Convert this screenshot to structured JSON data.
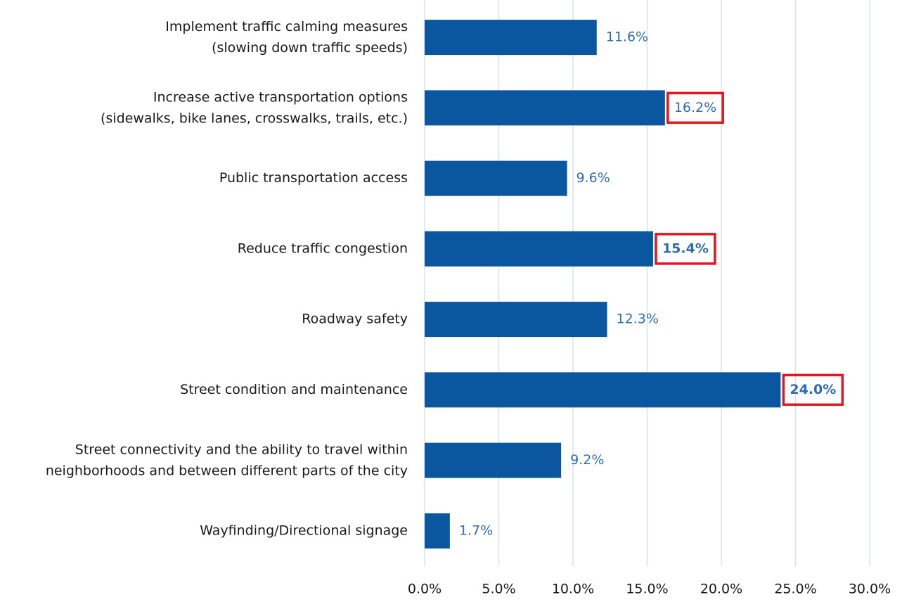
{
  "chart_data": {
    "type": "barh",
    "categories": [
      "Implement traffic calming measures\n(slowing down traffic speeds)",
      "Increase active transportation options\n(sidewalks, bike lanes, crosswalks, trails, etc.)",
      "Public transportation access",
      "Reduce traffic congestion",
      "Roadway safety",
      "Street condition and maintenance",
      "Street connectivity and the ability to travel within\nneighborhoods and between different parts of the city",
      "Wayfinding/Directional signage"
    ],
    "values": [
      11.6,
      16.2,
      9.6,
      15.4,
      12.3,
      24.0,
      9.2,
      1.7
    ],
    "value_labels": [
      "11.6%",
      "16.2%",
      "9.6%",
      "15.4%",
      "12.3%",
      "24.0%",
      "9.2%",
      "1.7%"
    ],
    "color": "#0a569f",
    "xlim": [
      0,
      30
    ],
    "xticks": [
      {
        "value": 0,
        "label": "0.0%"
      },
      {
        "value": 5,
        "label": "5.0%"
      },
      {
        "value": 10,
        "label": "10.0%"
      },
      {
        "value": 15,
        "label": "15.0%"
      },
      {
        "value": 20,
        "label": "20.0%"
      },
      {
        "value": 25,
        "label": "25.0%"
      },
      {
        "value": 30,
        "label": "30.0%"
      }
    ],
    "grid": true,
    "highlighted": [
      1,
      3,
      5
    ],
    "bold_labels": [
      3,
      5
    ],
    "highlight_color": "#e8141c"
  }
}
